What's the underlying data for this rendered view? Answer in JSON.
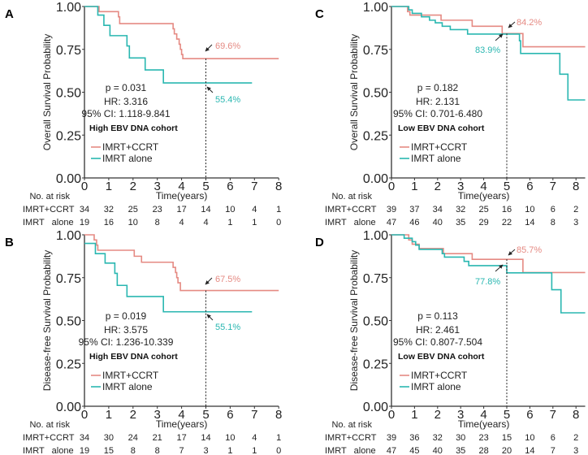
{
  "colors": {
    "IMRT+CCRT": "#e58a83",
    "IMRT alone": "#2ab7b1"
  },
  "chart_data": [
    {
      "panel": "A",
      "type": "line",
      "step": true,
      "ylabel": "Overall Survival Probability",
      "xlabel": "Time(years)",
      "xlim": [
        0,
        8
      ],
      "ylim": [
        0,
        1
      ],
      "xticks": [
        "0",
        "1",
        "2",
        "3",
        "4",
        "5",
        "6",
        "7",
        "8"
      ],
      "yticks": [
        "0.00",
        "0.25",
        "0.50",
        "0.75",
        "1.00"
      ],
      "stats": {
        "p": "p = 0.031",
        "hr": "HR: 3.316",
        "ci": "95% CI: 1.118-9.841",
        "cohort": "High EBV DNA cohort"
      },
      "series": [
        {
          "name": "IMRT+CCRT",
          "points": [
            [
              0,
              1
            ],
            [
              0.6,
              0.97
            ],
            [
              1.4,
              0.94
            ],
            [
              1.45,
              0.9
            ],
            [
              3.65,
              0.87
            ],
            [
              3.7,
              0.84
            ],
            [
              3.8,
              0.81
            ],
            [
              3.9,
              0.78
            ],
            [
              3.95,
              0.75
            ],
            [
              4.0,
              0.72
            ],
            [
              4.05,
              0.696
            ],
            [
              8,
              0.696
            ]
          ],
          "label_5yr": "69.6%",
          "value_5yr": 0.696
        },
        {
          "name": "IMRT alone",
          "points": [
            [
              0,
              1
            ],
            [
              0.55,
              0.95
            ],
            [
              0.8,
              0.89
            ],
            [
              1.05,
              0.83
            ],
            [
              1.75,
              0.77
            ],
            [
              1.85,
              0.7
            ],
            [
              2.5,
              0.63
            ],
            [
              3.25,
              0.554
            ],
            [
              6.9,
              0.554
            ]
          ],
          "label_5yr": "55.4%",
          "value_5yr": 0.554
        }
      ],
      "risk_table": {
        "title": "No. at risk",
        "rows": [
          {
            "label": "IMRT+CCRT",
            "values": [
              "34",
              "32",
              "25",
              "23",
              "17",
              "14",
              "10",
              "4",
              "1"
            ]
          },
          {
            "label": "IMRT   alone",
            "values": [
              "19",
              "16",
              "10",
              "8",
              "4",
              "4",
              "1",
              "1",
              "0"
            ]
          }
        ]
      }
    },
    {
      "panel": "C",
      "type": "line",
      "step": true,
      "ylabel": "Overall Survival Probability",
      "xlabel": "Time(years)",
      "xlim": [
        0,
        8.4
      ],
      "ylim": [
        0,
        1
      ],
      "xticks": [
        "0",
        "1",
        "2",
        "3",
        "4",
        "5",
        "6",
        "7",
        "8"
      ],
      "yticks": [
        "0.00",
        "0.25",
        "0.50",
        "0.75",
        "1.00"
      ],
      "stats": {
        "p": "p = 0.182",
        "hr": "HR: 2.131",
        "ci": "95% CI: 0.701-6.480",
        "cohort": "Low EBV DNA cohort"
      },
      "series": [
        {
          "name": "IMRT+CCRT",
          "points": [
            [
              0,
              1
            ],
            [
              0.7,
              0.97
            ],
            [
              0.8,
              0.95
            ],
            [
              2.15,
              0.92
            ],
            [
              3.5,
              0.885
            ],
            [
              4.8,
              0.842
            ],
            [
              5.7,
              0.765
            ],
            [
              8.4,
              0.765
            ]
          ],
          "label_5yr": "84.2%",
          "value_5yr": 0.842
        },
        {
          "name": "IMRT alone",
          "points": [
            [
              0,
              1
            ],
            [
              0.75,
              0.98
            ],
            [
              0.9,
              0.96
            ],
            [
              1.3,
              0.94
            ],
            [
              1.65,
              0.92
            ],
            [
              1.9,
              0.905
            ],
            [
              2.2,
              0.885
            ],
            [
              2.55,
              0.865
            ],
            [
              3.3,
              0.839
            ],
            [
              5.55,
              0.8
            ],
            [
              5.6,
              0.726
            ],
            [
              7.3,
              0.605
            ],
            [
              7.65,
              0.455
            ],
            [
              8.4,
              0.455
            ]
          ],
          "label_5yr": "83.9%",
          "value_5yr": 0.839
        }
      ],
      "risk_table": {
        "title": "No. at risk",
        "rows": [
          {
            "label": "IMRT+CCRT",
            "values": [
              "39",
              "37",
              "34",
              "32",
              "25",
              "16",
              "10",
              "6",
              "2"
            ]
          },
          {
            "label": "IMRT   alone",
            "values": [
              "47",
              "46",
              "40",
              "35",
              "29",
              "22",
              "14",
              "8",
              "3"
            ]
          }
        ]
      }
    },
    {
      "panel": "B",
      "type": "line",
      "step": true,
      "ylabel": "Disease-free Survival Probability",
      "xlabel": "Time(years)",
      "xlim": [
        0,
        8
      ],
      "ylim": [
        0,
        1
      ],
      "xticks": [
        "0",
        "1",
        "2",
        "3",
        "4",
        "5",
        "6",
        "7",
        "8"
      ],
      "yticks": [
        "0.00",
        "0.25",
        "0.50",
        "0.75",
        "1.00"
      ],
      "stats": {
        "p": "p = 0.019",
        "hr": "HR: 3.575",
        "ci": "95% CI: 1.236-10.339",
        "cohort": "High EBV DNA cohort"
      },
      "series": [
        {
          "name": "IMRT+CCRT",
          "points": [
            [
              0,
              1
            ],
            [
              0.4,
              0.97
            ],
            [
              0.5,
              0.94
            ],
            [
              0.55,
              0.91
            ],
            [
              2.05,
              0.875
            ],
            [
              2.35,
              0.84
            ],
            [
              3.65,
              0.81
            ],
            [
              3.75,
              0.78
            ],
            [
              3.8,
              0.75
            ],
            [
              3.85,
              0.72
            ],
            [
              3.95,
              0.675
            ],
            [
              8,
              0.675
            ]
          ],
          "label_5yr": "67.5%",
          "value_5yr": 0.675
        },
        {
          "name": "IMRT alone",
          "points": [
            [
              0,
              0.95
            ],
            [
              0.45,
              0.89
            ],
            [
              0.85,
              0.835
            ],
            [
              1.25,
              0.775
            ],
            [
              1.35,
              0.705
            ],
            [
              1.75,
              0.64
            ],
            [
              3.25,
              0.551
            ],
            [
              6.9,
              0.551
            ]
          ],
          "label_5yr": "55.1%",
          "value_5yr": 0.551
        }
      ],
      "risk_table": {
        "title": "No. at risk",
        "rows": [
          {
            "label": "IMRT+CCRT",
            "values": [
              "34",
              "30",
              "24",
              "21",
              "17",
              "14",
              "10",
              "4",
              "1"
            ]
          },
          {
            "label": "IMRT   alone",
            "values": [
              "19",
              "15",
              "8",
              "8",
              "7",
              "3",
              "1",
              "1",
              "0"
            ]
          }
        ]
      }
    },
    {
      "panel": "D",
      "type": "line",
      "step": true,
      "ylabel": "Disease-free Survival Probability",
      "xlabel": "Time(years)",
      "xlim": [
        0,
        8.4
      ],
      "ylim": [
        0,
        1
      ],
      "xticks": [
        "0",
        "1",
        "2",
        "3",
        "4",
        "5",
        "6",
        "7",
        "8"
      ],
      "yticks": [
        "0.00",
        "0.25",
        "0.50",
        "0.75",
        "1.00"
      ],
      "stats": {
        "p": "p = 0.113",
        "hr": "HR: 2.461",
        "ci": "95% CI: 0.807-7.504",
        "cohort": "Low EBV DNA cohort"
      },
      "series": [
        {
          "name": "IMRT+CCRT",
          "points": [
            [
              0,
              1
            ],
            [
              0.75,
              0.97
            ],
            [
              0.9,
              0.945
            ],
            [
              1.2,
              0.92
            ],
            [
              2.25,
              0.89
            ],
            [
              3.5,
              0.857
            ],
            [
              5.7,
              0.78
            ],
            [
              8.4,
              0.78
            ]
          ],
          "label_5yr": "85.7%",
          "value_5yr": 0.857
        },
        {
          "name": "IMRT alone",
          "points": [
            [
              0,
              1
            ],
            [
              0.55,
              0.98
            ],
            [
              0.9,
              0.96
            ],
            [
              1.05,
              0.94
            ],
            [
              1.2,
              0.915
            ],
            [
              2.2,
              0.89
            ],
            [
              2.3,
              0.87
            ],
            [
              3.15,
              0.845
            ],
            [
              3.35,
              0.82
            ],
            [
              5,
              0.778
            ],
            [
              6.95,
              0.68
            ],
            [
              7.35,
              0.545
            ],
            [
              8.4,
              0.545
            ]
          ],
          "label_5yr": "77.8%",
          "value_5yr": 0.778
        }
      ],
      "risk_table": {
        "title": "No. at risk",
        "rows": [
          {
            "label": "IMRT+CCRT",
            "values": [
              "39",
              "36",
              "32",
              "30",
              "23",
              "15",
              "10",
              "6",
              "2"
            ]
          },
          {
            "label": "IMRT   alone",
            "values": [
              "47",
              "45",
              "40",
              "35",
              "28",
              "20",
              "14",
              "7",
              "3"
            ]
          }
        ]
      }
    }
  ]
}
